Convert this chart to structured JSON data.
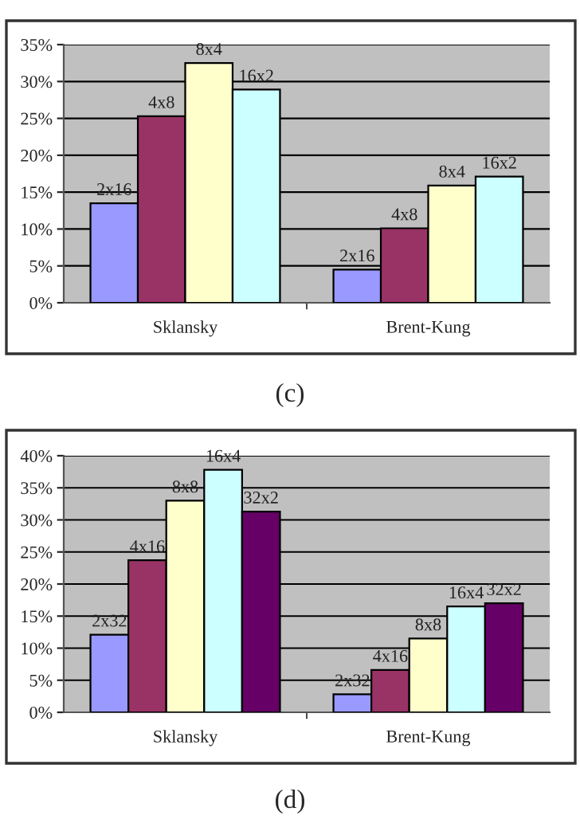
{
  "chart_data": [
    {
      "type": "bar",
      "categories": [
        "Sklansky",
        "Brent-Kung"
      ],
      "annotations": [
        "(c)"
      ],
      "ylim": [
        0,
        35
      ],
      "yticks": [
        {
          "value": 0,
          "label": "0%"
        },
        {
          "value": 5,
          "label": "5%"
        },
        {
          "value": 10,
          "label": "10%"
        },
        {
          "value": 15,
          "label": "15%"
        },
        {
          "value": 20,
          "label": "20%"
        },
        {
          "value": 25,
          "label": "25%"
        },
        {
          "value": 30,
          "label": "30%"
        },
        {
          "value": 35,
          "label": "35%"
        }
      ],
      "grid": "y",
      "legend": false,
      "series": [
        {
          "name": "2x16",
          "color": "#9999ff",
          "values": [
            13.5,
            4.5
          ]
        },
        {
          "name": "4x8",
          "color": "#993366",
          "values": [
            25.3,
            10.1
          ]
        },
        {
          "name": "8x4",
          "color": "#ffffcc",
          "values": [
            32.5,
            15.9
          ]
        },
        {
          "name": "16x2",
          "color": "#ccffff",
          "values": [
            28.9,
            17.1
          ]
        }
      ]
    },
    {
      "type": "bar",
      "categories": [
        "Sklansky",
        "Brent-Kung"
      ],
      "annotations": [
        "(d)"
      ],
      "ylim": [
        0,
        40
      ],
      "yticks": [
        {
          "value": 0,
          "label": "0%"
        },
        {
          "value": 5,
          "label": "5%"
        },
        {
          "value": 10,
          "label": "10%"
        },
        {
          "value": 15,
          "label": "15%"
        },
        {
          "value": 20,
          "label": "20%"
        },
        {
          "value": 25,
          "label": "25%"
        },
        {
          "value": 30,
          "label": "30%"
        },
        {
          "value": 35,
          "label": "35%"
        },
        {
          "value": 40,
          "label": "40%"
        }
      ],
      "grid": "y",
      "legend": false,
      "series": [
        {
          "name": "2x32",
          "color": "#9999ff",
          "values": [
            12.1,
            2.8
          ]
        },
        {
          "name": "4x16",
          "color": "#993366",
          "values": [
            23.7,
            6.6
          ]
        },
        {
          "name": "8x8",
          "color": "#ffffcc",
          "values": [
            33.0,
            11.5
          ]
        },
        {
          "name": "16x4",
          "color": "#ccffff",
          "values": [
            37.8,
            16.5
          ]
        },
        {
          "name": "32x2",
          "color": "#660066",
          "values": [
            31.3,
            17.0
          ]
        }
      ]
    }
  ]
}
